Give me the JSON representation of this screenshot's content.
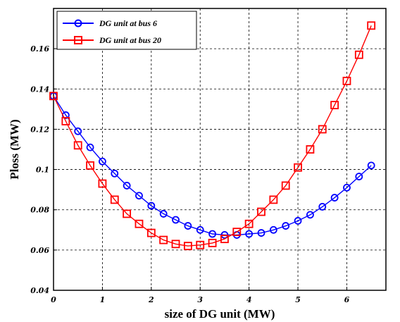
{
  "chart_data": {
    "type": "line",
    "title": "",
    "xlabel": "size of DG unit (MW)",
    "ylabel": "Ploss (MW)",
    "xlim": [
      0,
      6.8
    ],
    "ylim": [
      0.04,
      0.18
    ],
    "xticks": [
      0,
      1,
      2,
      3,
      4,
      5,
      6
    ],
    "xtick_labels": [
      "0",
      "1",
      "2",
      "3",
      "4",
      "5",
      "6"
    ],
    "yticks": [
      0.04,
      0.06,
      0.08,
      0.1,
      0.12,
      0.14,
      0.16
    ],
    "ytick_labels": [
      "0.04",
      "0.06",
      "0.08",
      "0.1",
      "0.12",
      "0.14",
      "0.16"
    ],
    "grid": true,
    "legend_position": "top-left",
    "x": [
      0,
      0.25,
      0.5,
      0.75,
      1,
      1.25,
      1.5,
      1.75,
      2,
      2.25,
      2.5,
      2.75,
      3,
      3.25,
      3.5,
      3.75,
      4,
      4.25,
      4.5,
      4.75,
      5,
      5.25,
      5.5,
      5.75,
      6,
      6.25,
      6.5
    ],
    "series": [
      {
        "name": "DG unit at bus 6",
        "color": "#0000ff",
        "marker": "circle",
        "values": [
          0.1365,
          0.127,
          0.119,
          0.111,
          0.104,
          0.098,
          0.092,
          0.087,
          0.082,
          0.078,
          0.075,
          0.072,
          0.07,
          0.068,
          0.0675,
          0.0675,
          0.068,
          0.0685,
          0.07,
          0.072,
          0.0745,
          0.0775,
          0.0815,
          0.086,
          0.091,
          0.0965,
          0.102
        ]
      },
      {
        "name": "DG unit at bus 20",
        "color": "#ff0000",
        "marker": "square",
        "values": [
          0.1365,
          0.124,
          0.112,
          0.102,
          0.093,
          0.085,
          0.078,
          0.073,
          0.0685,
          0.065,
          0.063,
          0.062,
          0.0625,
          0.0635,
          0.0655,
          0.069,
          0.073,
          0.079,
          0.085,
          0.092,
          0.101,
          0.11,
          0.12,
          0.132,
          0.144,
          0.157,
          0.1715
        ]
      }
    ]
  }
}
